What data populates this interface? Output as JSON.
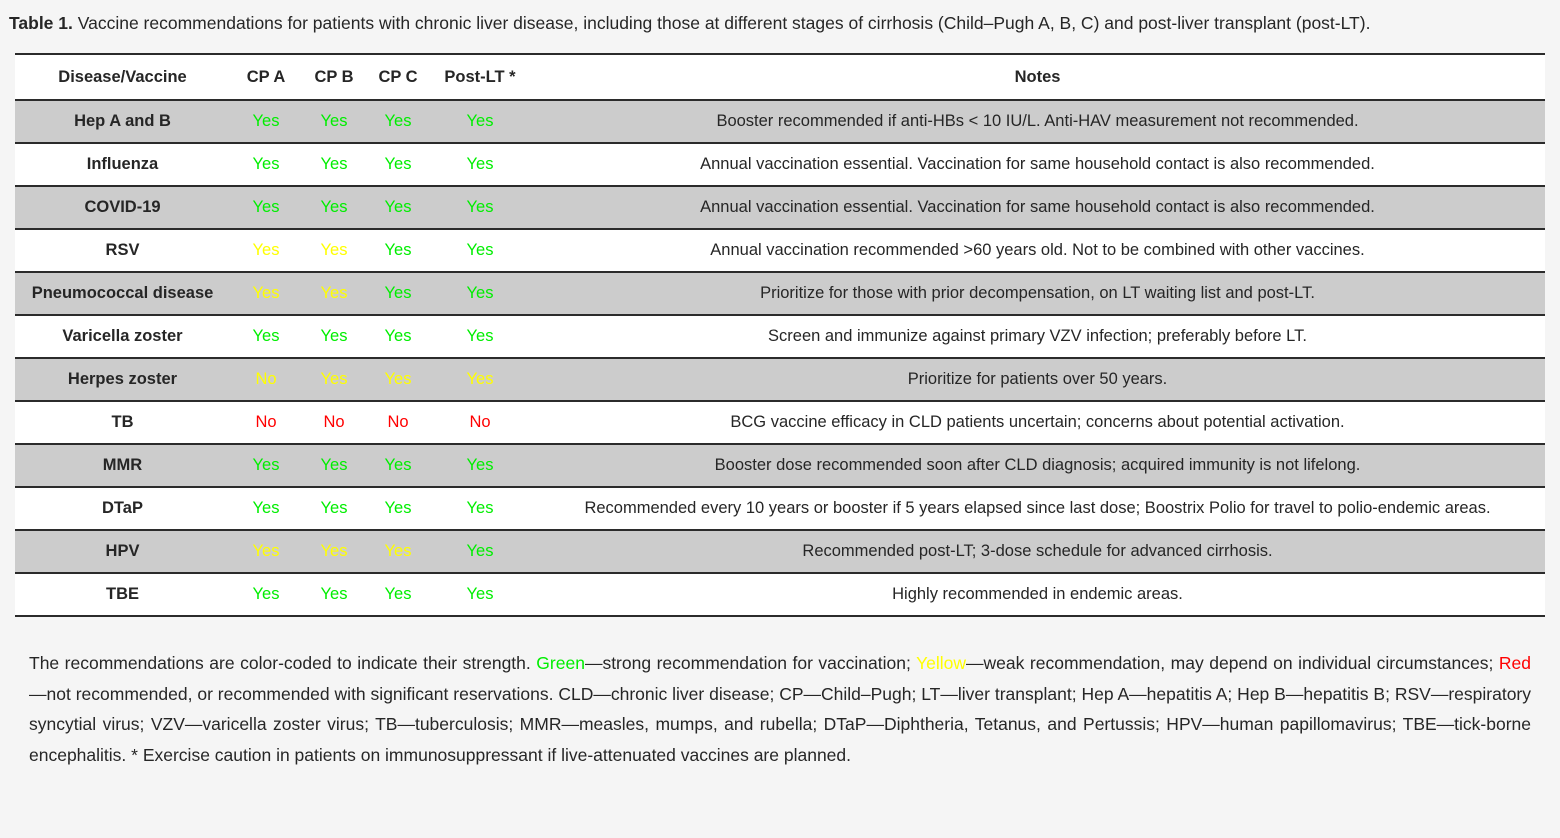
{
  "caption": {
    "label": "Table 1.",
    "text": " Vaccine recommendations for patients with chronic liver disease, including those at different stages of cirrhosis (Child–Pugh A, B, C) and post-liver transplant (post-LT)."
  },
  "colors": {
    "green": "#00ee00",
    "yellow": "#ffff00",
    "red": "#ff0000",
    "stripe_gray": "#cccccc",
    "page_background": "#f5f5f5",
    "border": "#2b2b2b"
  },
  "table": {
    "headers": [
      "Disease/Vaccine",
      "CP A",
      "CP B",
      "CP C",
      "Post-LT *",
      "Notes"
    ],
    "rows": [
      {
        "disease": "Hep A and B",
        "cells": [
          {
            "text": "Yes",
            "color": "green"
          },
          {
            "text": "Yes",
            "color": "green"
          },
          {
            "text": "Yes",
            "color": "green"
          },
          {
            "text": "Yes",
            "color": "green"
          }
        ],
        "note": "Booster recommended if anti-HBs < 10 IU/L. Anti-HAV measurement not recommended."
      },
      {
        "disease": "Influenza",
        "cells": [
          {
            "text": "Yes",
            "color": "green"
          },
          {
            "text": "Yes",
            "color": "green"
          },
          {
            "text": "Yes",
            "color": "green"
          },
          {
            "text": "Yes",
            "color": "green"
          }
        ],
        "note": "Annual vaccination essential. Vaccination for same household contact is also recommended."
      },
      {
        "disease": "COVID-19",
        "cells": [
          {
            "text": "Yes",
            "color": "green"
          },
          {
            "text": "Yes",
            "color": "green"
          },
          {
            "text": "Yes",
            "color": "green"
          },
          {
            "text": "Yes",
            "color": "green"
          }
        ],
        "note": "Annual vaccination essential. Vaccination for same household contact is also recommended."
      },
      {
        "disease": "RSV",
        "cells": [
          {
            "text": "Yes",
            "color": "yellow"
          },
          {
            "text": "Yes",
            "color": "yellow"
          },
          {
            "text": "Yes",
            "color": "green"
          },
          {
            "text": "Yes",
            "color": "green"
          }
        ],
        "note": "Annual vaccination recommended >60 years old. Not to be combined with other vaccines."
      },
      {
        "disease": "Pneumococcal disease",
        "cells": [
          {
            "text": "Yes",
            "color": "yellow"
          },
          {
            "text": "Yes",
            "color": "yellow"
          },
          {
            "text": "Yes",
            "color": "green"
          },
          {
            "text": "Yes",
            "color": "green"
          }
        ],
        "note": "Prioritize for those with prior decompensation, on LT waiting list and post-LT."
      },
      {
        "disease": "Varicella zoster",
        "cells": [
          {
            "text": "Yes",
            "color": "green"
          },
          {
            "text": "Yes",
            "color": "green"
          },
          {
            "text": "Yes",
            "color": "green"
          },
          {
            "text": "Yes",
            "color": "green"
          }
        ],
        "note": "Screen and immunize against primary VZV infection; preferably before LT."
      },
      {
        "disease": "Herpes zoster",
        "cells": [
          {
            "text": "No",
            "color": "yellow"
          },
          {
            "text": "Yes",
            "color": "yellow"
          },
          {
            "text": "Yes",
            "color": "yellow"
          },
          {
            "text": "Yes",
            "color": "yellow"
          }
        ],
        "note": "Prioritize for patients over 50 years."
      },
      {
        "disease": "TB",
        "cells": [
          {
            "text": "No",
            "color": "red"
          },
          {
            "text": "No",
            "color": "red"
          },
          {
            "text": "No",
            "color": "red"
          },
          {
            "text": "No",
            "color": "red"
          }
        ],
        "note": "BCG vaccine efficacy in CLD patients uncertain; concerns about potential activation."
      },
      {
        "disease": "MMR",
        "cells": [
          {
            "text": "Yes",
            "color": "green"
          },
          {
            "text": "Yes",
            "color": "green"
          },
          {
            "text": "Yes",
            "color": "green"
          },
          {
            "text": "Yes",
            "color": "green"
          }
        ],
        "note": "Booster dose recommended soon after CLD diagnosis; acquired immunity is not lifelong."
      },
      {
        "disease": "DTaP",
        "cells": [
          {
            "text": "Yes",
            "color": "green"
          },
          {
            "text": "Yes",
            "color": "green"
          },
          {
            "text": "Yes",
            "color": "green"
          },
          {
            "text": "Yes",
            "color": "green"
          }
        ],
        "note": "Recommended every 10 years or booster if 5 years elapsed since last dose; Boostrix Polio for travel to polio-endemic areas."
      },
      {
        "disease": "HPV",
        "cells": [
          {
            "text": "Yes",
            "color": "yellow"
          },
          {
            "text": "Yes",
            "color": "yellow"
          },
          {
            "text": "Yes",
            "color": "yellow"
          },
          {
            "text": "Yes",
            "color": "green"
          }
        ],
        "note": "Recommended post-LT; 3-dose schedule for advanced cirrhosis."
      },
      {
        "disease": "TBE",
        "cells": [
          {
            "text": "Yes",
            "color": "green"
          },
          {
            "text": "Yes",
            "color": "green"
          },
          {
            "text": "Yes",
            "color": "green"
          },
          {
            "text": "Yes",
            "color": "green"
          }
        ],
        "note": "Highly recommended in endemic areas."
      }
    ]
  },
  "footnote": {
    "segments": [
      {
        "text": "The recommendations are color-coded to indicate their strength. ",
        "color": null
      },
      {
        "text": "Green",
        "color": "green"
      },
      {
        "text": "—strong recommendation for vaccination; ",
        "color": null
      },
      {
        "text": "Yellow",
        "color": "yellow"
      },
      {
        "text": "—weak recommendation, may depend on individual circumstances; ",
        "color": null
      },
      {
        "text": "Red",
        "color": "red"
      },
      {
        "text": "—not recommended, or recommended with significant reservations. CLD—chronic liver disease; CP—Child–Pugh; LT—liver transplant; Hep A—hepatitis A; Hep B—hepatitis B; RSV—respiratory syncytial virus; VZV—varicella zoster virus; TB—tuberculosis; MMR—measles, mumps, and rubella; DTaP—Diphtheria, Tetanus, and Pertussis; HPV—human papillomavirus; TBE—tick-borne encephalitis. * Exercise caution in patients on immunosuppressant if live-attenuated vaccines are planned.",
        "color": null
      }
    ]
  }
}
